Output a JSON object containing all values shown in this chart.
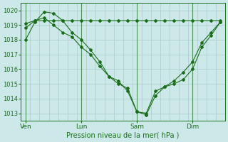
{
  "bg_color": "#cce8e8",
  "grid_color": "#aacccc",
  "line_color": "#1a6e1a",
  "xlabel": "Pression niveau de la mer( hPa )",
  "xlabel_fontsize": 7,
  "ylim": [
    1012.5,
    1020.5
  ],
  "yticks": [
    1013,
    1014,
    1015,
    1016,
    1017,
    1018,
    1019,
    1020
  ],
  "xtick_labels": [
    "Ven",
    "Lun",
    "Sam",
    "Dim"
  ],
  "xtick_positions": [
    0,
    6,
    12,
    18
  ],
  "xlim": [
    -0.5,
    21.5
  ],
  "series_flat": {
    "x": [
      0,
      1,
      2,
      3,
      4,
      5,
      6,
      7,
      8,
      9,
      10,
      11,
      12,
      13,
      14,
      15,
      16,
      17,
      18,
      19,
      20,
      21
    ],
    "y": [
      1019.1,
      1019.3,
      1019.3,
      1019.3,
      1019.3,
      1019.3,
      1019.3,
      1019.3,
      1019.3,
      1019.3,
      1019.3,
      1019.3,
      1019.3,
      1019.3,
      1019.3,
      1019.3,
      1019.3,
      1019.3,
      1019.3,
      1019.3,
      1019.3,
      1019.3
    ]
  },
  "series_deep1": {
    "x": [
      0,
      1,
      2,
      3,
      4,
      5,
      6,
      7,
      8,
      9,
      10,
      11,
      12,
      13,
      14,
      15,
      16,
      17,
      18,
      19,
      20,
      21
    ],
    "y": [
      1018.0,
      1019.2,
      1019.9,
      1019.8,
      1019.3,
      1018.5,
      1018.0,
      1017.3,
      1016.5,
      1015.5,
      1015.2,
      1014.5,
      1013.1,
      1012.9,
      1014.2,
      1014.8,
      1015.0,
      1015.3,
      1016.0,
      1017.5,
      1018.3,
      1019.2
    ]
  },
  "series_deep2": {
    "x": [
      0,
      1,
      2,
      3,
      4,
      5,
      6,
      7,
      8,
      9,
      10,
      11,
      12,
      13,
      14,
      15,
      16,
      17,
      18,
      19,
      20,
      21
    ],
    "y": [
      1018.8,
      1019.3,
      1019.5,
      1019.0,
      1018.5,
      1018.2,
      1017.5,
      1017.0,
      1016.2,
      1015.5,
      1015.0,
      1014.7,
      1013.1,
      1013.0,
      1014.5,
      1014.8,
      1015.2,
      1015.8,
      1016.5,
      1017.8,
      1018.5,
      1019.2
    ]
  }
}
